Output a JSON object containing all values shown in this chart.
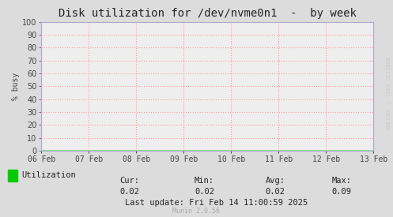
{
  "title": "Disk utilization for /dev/nvme0n1  -  by week",
  "ylabel": "% busy",
  "bg_color": "#dcdcdc",
  "plot_bg_color": "#eeeeee",
  "grid_color": "#ff9999",
  "spine_color": "#aaaacc",
  "ylim": [
    0,
    100
  ],
  "yticks": [
    0,
    10,
    20,
    30,
    40,
    50,
    60,
    70,
    80,
    90,
    100
  ],
  "x_labels": [
    "06 Feb",
    "07 Feb",
    "08 Feb",
    "09 Feb",
    "10 Feb",
    "11 Feb",
    "12 Feb",
    "13 Feb"
  ],
  "line_color": "#00cc00",
  "line_value": 0.02,
  "legend_label": "Utilization",
  "cur": "0.02",
  "min_val": "0.02",
  "avg": "0.02",
  "max_val": "0.09",
  "last_update": "Last update: Fri Feb 14 11:00:59 2025",
  "munin_version": "Munin 2.0.56",
  "watermark": "RRDTOOL / TOBI OETIKER",
  "title_fontsize": 10,
  "axis_fontsize": 7,
  "legend_fontsize": 7.5,
  "watermark_fontsize": 5
}
